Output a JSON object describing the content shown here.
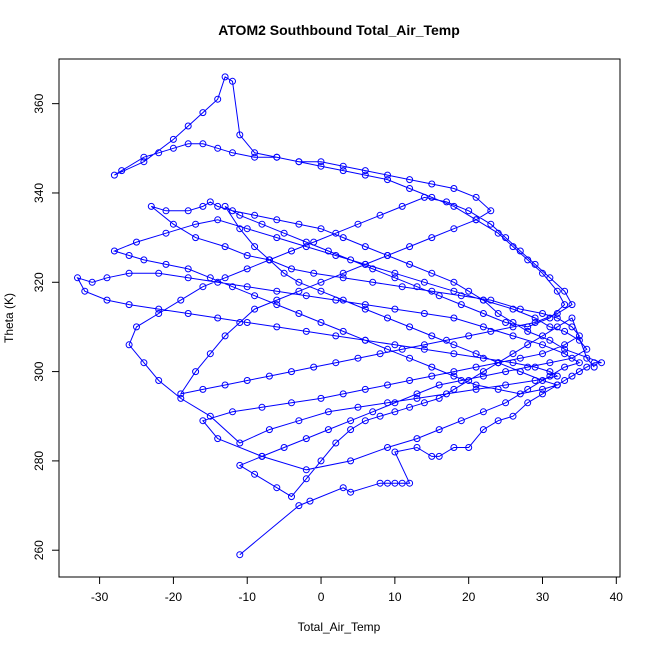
{
  "chart_data": {
    "type": "line",
    "title": "ATOM2 Southbound Total_Air_Temp",
    "xlabel": "Total_Air_Temp",
    "ylabel": "Theta (K)",
    "xlim": [
      -35.5,
      40.5
    ],
    "ylim": [
      254,
      370
    ],
    "xticks": [
      -30,
      -20,
      -10,
      0,
      10,
      20,
      30,
      40
    ],
    "yticks": [
      260,
      280,
      300,
      320,
      340,
      360
    ],
    "grid": false,
    "legend": "none",
    "series_color": "#0000ff",
    "points": [
      [
        -11,
        259
      ],
      [
        -3,
        270
      ],
      [
        -1.5,
        271
      ],
      [
        3,
        274
      ],
      [
        4,
        273
      ],
      [
        8,
        275
      ],
      [
        9,
        275
      ],
      [
        10,
        275
      ],
      [
        11,
        275
      ],
      [
        12,
        275
      ],
      [
        10,
        282
      ],
      [
        13,
        283
      ],
      [
        15,
        281
      ],
      [
        16,
        281
      ],
      [
        18,
        283
      ],
      [
        20,
        283
      ],
      [
        22,
        287
      ],
      [
        24,
        289
      ],
      [
        26,
        290
      ],
      [
        28,
        293
      ],
      [
        30,
        295
      ],
      [
        32,
        297
      ],
      [
        33,
        298
      ],
      [
        34,
        299
      ],
      [
        35,
        300
      ],
      [
        36,
        301
      ],
      [
        37,
        302
      ],
      [
        38,
        302
      ],
      [
        33,
        305
      ],
      [
        31,
        307
      ],
      [
        28,
        309
      ],
      [
        26,
        311
      ],
      [
        24,
        313
      ],
      [
        22,
        316
      ],
      [
        20,
        318
      ],
      [
        18,
        320
      ],
      [
        15,
        322
      ],
      [
        12,
        324
      ],
      [
        9,
        326
      ],
      [
        6,
        328
      ],
      [
        3,
        330
      ],
      [
        0,
        332
      ],
      [
        -3,
        333
      ],
      [
        -6,
        334
      ],
      [
        -9,
        335
      ],
      [
        -12,
        336
      ],
      [
        -14,
        337
      ],
      [
        -15,
        338
      ],
      [
        -16,
        337
      ],
      [
        -18,
        336
      ],
      [
        -21,
        336
      ],
      [
        -23,
        337
      ],
      [
        -20,
        333
      ],
      [
        -17,
        330
      ],
      [
        -13,
        328
      ],
      [
        -10,
        326
      ],
      [
        -7,
        325
      ],
      [
        -4,
        323
      ],
      [
        -1,
        322
      ],
      [
        3,
        321
      ],
      [
        7,
        320
      ],
      [
        11,
        319
      ],
      [
        15,
        318
      ],
      [
        19,
        317
      ],
      [
        23,
        316
      ],
      [
        27,
        314
      ],
      [
        30,
        313
      ],
      [
        32,
        312
      ],
      [
        34,
        310
      ],
      [
        35,
        308
      ],
      [
        33,
        306
      ],
      [
        30,
        304
      ],
      [
        27,
        303
      ],
      [
        24,
        302
      ],
      [
        21,
        301
      ],
      [
        18,
        300
      ],
      [
        15,
        299
      ],
      [
        12,
        298
      ],
      [
        9,
        297
      ],
      [
        6,
        296
      ],
      [
        3,
        295
      ],
      [
        0,
        294
      ],
      [
        -4,
        293
      ],
      [
        -8,
        292
      ],
      [
        -12,
        291
      ],
      [
        -16,
        289
      ],
      [
        -14,
        285
      ],
      [
        -8,
        281
      ],
      [
        -2,
        278
      ],
      [
        4,
        280
      ],
      [
        9,
        283
      ],
      [
        13,
        285
      ],
      [
        16,
        287
      ],
      [
        19,
        289
      ],
      [
        22,
        291
      ],
      [
        25,
        293
      ],
      [
        28,
        296
      ],
      [
        31,
        299
      ],
      [
        33,
        301
      ],
      [
        35,
        302
      ],
      [
        33,
        304
      ],
      [
        30,
        306
      ],
      [
        26,
        308
      ],
      [
        22,
        310
      ],
      [
        18,
        312
      ],
      [
        14,
        313
      ],
      [
        10,
        314
      ],
      [
        6,
        315
      ],
      [
        2,
        316
      ],
      [
        -2,
        317
      ],
      [
        -6,
        318
      ],
      [
        -10,
        319
      ],
      [
        -14,
        320
      ],
      [
        -18,
        321
      ],
      [
        -22,
        322
      ],
      [
        -26,
        322
      ],
      [
        -29,
        321
      ],
      [
        -31,
        320
      ],
      [
        -33,
        321
      ],
      [
        -32,
        318
      ],
      [
        -29,
        316
      ],
      [
        -26,
        315
      ],
      [
        -22,
        314
      ],
      [
        -18,
        313
      ],
      [
        -14,
        312
      ],
      [
        -10,
        311
      ],
      [
        -6,
        310
      ],
      [
        -2,
        309
      ],
      [
        2,
        308
      ],
      [
        6,
        307
      ],
      [
        10,
        306
      ],
      [
        14,
        305
      ],
      [
        18,
        304
      ],
      [
        22,
        303
      ],
      [
        26,
        302
      ],
      [
        29,
        301
      ],
      [
        31,
        300
      ],
      [
        32,
        299
      ],
      [
        29,
        298
      ],
      [
        25,
        297
      ],
      [
        21,
        296
      ],
      [
        17,
        295
      ],
      [
        13,
        294
      ],
      [
        9,
        293
      ],
      [
        5,
        292
      ],
      [
        1,
        291
      ],
      [
        -3,
        289
      ],
      [
        -7,
        287
      ],
      [
        -11,
        284
      ],
      [
        -15,
        290
      ],
      [
        -19,
        294
      ],
      [
        -22,
        298
      ],
      [
        -24,
        302
      ],
      [
        -26,
        306
      ],
      [
        -25,
        310
      ],
      [
        -22,
        313
      ],
      [
        -19,
        316
      ],
      [
        -16,
        319
      ],
      [
        -13,
        321
      ],
      [
        -10,
        323
      ],
      [
        -7,
        325
      ],
      [
        -4,
        327
      ],
      [
        -1,
        329
      ],
      [
        2,
        331
      ],
      [
        5,
        333
      ],
      [
        8,
        335
      ],
      [
        11,
        337
      ],
      [
        14,
        339
      ],
      [
        17,
        338
      ],
      [
        20,
        336
      ],
      [
        23,
        333
      ],
      [
        25,
        330
      ],
      [
        27,
        327
      ],
      [
        29,
        324
      ],
      [
        31,
        321
      ],
      [
        33,
        318
      ],
      [
        34,
        315
      ],
      [
        32,
        313
      ],
      [
        29,
        311
      ],
      [
        26,
        310
      ],
      [
        23,
        309
      ],
      [
        20,
        308
      ],
      [
        17,
        307
      ],
      [
        14,
        306
      ],
      [
        11,
        305
      ],
      [
        8,
        304
      ],
      [
        5,
        303
      ],
      [
        2,
        302
      ],
      [
        -1,
        301
      ],
      [
        -4,
        300
      ],
      [
        -7,
        299
      ],
      [
        -10,
        298
      ],
      [
        -13,
        297
      ],
      [
        -16,
        296
      ],
      [
        -19,
        295
      ],
      [
        -17,
        300
      ],
      [
        -15,
        304
      ],
      [
        -13,
        308
      ],
      [
        -11,
        311
      ],
      [
        -9,
        314
      ],
      [
        -6,
        316
      ],
      [
        -3,
        318
      ],
      [
        0,
        320
      ],
      [
        3,
        322
      ],
      [
        6,
        324
      ],
      [
        9,
        326
      ],
      [
        12,
        328
      ],
      [
        15,
        330
      ],
      [
        18,
        332
      ],
      [
        21,
        334
      ],
      [
        23,
        336
      ],
      [
        21,
        339
      ],
      [
        18,
        341
      ],
      [
        15,
        342
      ],
      [
        12,
        343
      ],
      [
        9,
        344
      ],
      [
        6,
        345
      ],
      [
        3,
        346
      ],
      [
        0,
        347
      ],
      [
        -3,
        347
      ],
      [
        -6,
        348
      ],
      [
        -9,
        348
      ],
      [
        -12,
        349
      ],
      [
        -14,
        350
      ],
      [
        -16,
        351
      ],
      [
        -18,
        351
      ],
      [
        -20,
        350
      ],
      [
        -22,
        349
      ],
      [
        -24,
        348
      ],
      [
        -27,
        345
      ],
      [
        -28,
        344
      ],
      [
        -24,
        347
      ],
      [
        -20,
        352
      ],
      [
        -18,
        355
      ],
      [
        -16,
        358
      ],
      [
        -14,
        361
      ],
      [
        -13,
        366
      ],
      [
        -12,
        365
      ],
      [
        -11,
        353
      ],
      [
        -9,
        349
      ],
      [
        -6,
        348
      ],
      [
        -3,
        347
      ],
      [
        0,
        346
      ],
      [
        3,
        345
      ],
      [
        6,
        344
      ],
      [
        9,
        343
      ],
      [
        12,
        341
      ],
      [
        15,
        339
      ],
      [
        18,
        337
      ],
      [
        21,
        334
      ],
      [
        24,
        331
      ],
      [
        26,
        328
      ],
      [
        28,
        325
      ],
      [
        30,
        322
      ],
      [
        32,
        318
      ],
      [
        33,
        315
      ],
      [
        31,
        312
      ],
      [
        28,
        310
      ],
      [
        25,
        311
      ],
      [
        22,
        313
      ],
      [
        19,
        315
      ],
      [
        16,
        317
      ],
      [
        13,
        319
      ],
      [
        10,
        321
      ],
      [
        7,
        323
      ],
      [
        4,
        325
      ],
      [
        1,
        327
      ],
      [
        -2,
        329
      ],
      [
        -5,
        331
      ],
      [
        -8,
        333
      ],
      [
        -11,
        335
      ],
      [
        -13,
        337
      ],
      [
        -11,
        332
      ],
      [
        -9,
        328
      ],
      [
        -7,
        325
      ],
      [
        -5,
        322
      ],
      [
        -3,
        320
      ],
      [
        0,
        318
      ],
      [
        3,
        316
      ],
      [
        6,
        314
      ],
      [
        9,
        312
      ],
      [
        12,
        310
      ],
      [
        15,
        308
      ],
      [
        18,
        306
      ],
      [
        21,
        304
      ],
      [
        24,
        302
      ],
      [
        27,
        300
      ],
      [
        30,
        298
      ],
      [
        32,
        297
      ],
      [
        30,
        296
      ],
      [
        27,
        295
      ],
      [
        24,
        296
      ],
      [
        21,
        297
      ],
      [
        18,
        299
      ],
      [
        15,
        301
      ],
      [
        12,
        303
      ],
      [
        9,
        305
      ],
      [
        6,
        307
      ],
      [
        3,
        309
      ],
      [
        0,
        311
      ],
      [
        -3,
        313
      ],
      [
        -6,
        315
      ],
      [
        -9,
        317
      ],
      [
        -12,
        319
      ],
      [
        -15,
        321
      ],
      [
        -18,
        323
      ],
      [
        -21,
        324
      ],
      [
        -24,
        325
      ],
      [
        -26,
        326
      ],
      [
        -28,
        327
      ],
      [
        -25,
        329
      ],
      [
        -21,
        331
      ],
      [
        -17,
        333
      ],
      [
        -14,
        334
      ],
      [
        -10,
        332
      ],
      [
        -6,
        330
      ],
      [
        -2,
        328
      ],
      [
        2,
        326
      ],
      [
        6,
        324
      ],
      [
        10,
        322
      ],
      [
        14,
        320
      ],
      [
        18,
        318
      ],
      [
        22,
        316
      ],
      [
        26,
        314
      ],
      [
        29,
        312
      ],
      [
        31,
        310
      ],
      [
        33,
        309
      ],
      [
        35,
        307
      ],
      [
        36,
        305
      ],
      [
        34,
        303
      ],
      [
        31,
        302
      ],
      [
        28,
        301
      ],
      [
        25,
        300
      ],
      [
        22,
        299
      ],
      [
        19,
        298
      ],
      [
        16,
        297
      ],
      [
        13,
        295
      ],
      [
        10,
        293
      ],
      [
        7,
        291
      ],
      [
        4,
        289
      ],
      [
        1,
        287
      ],
      [
        -2,
        285
      ],
      [
        -5,
        283
      ],
      [
        -8,
        281
      ],
      [
        -11,
        279
      ],
      [
        -9,
        277
      ],
      [
        -6,
        274
      ],
      [
        -4,
        272
      ],
      [
        -2,
        276
      ],
      [
        0,
        280
      ],
      [
        2,
        284
      ],
      [
        4,
        287
      ],
      [
        6,
        289
      ],
      [
        8,
        290
      ],
      [
        10,
        291
      ],
      [
        12,
        292
      ],
      [
        14,
        293
      ],
      [
        16,
        294
      ],
      [
        18,
        296
      ],
      [
        20,
        298
      ],
      [
        22,
        300
      ],
      [
        24,
        302
      ],
      [
        26,
        304
      ],
      [
        28,
        306
      ],
      [
        30,
        308
      ],
      [
        32,
        310
      ],
      [
        34,
        312
      ],
      [
        36,
        303
      ],
      [
        37,
        301
      ]
    ]
  }
}
